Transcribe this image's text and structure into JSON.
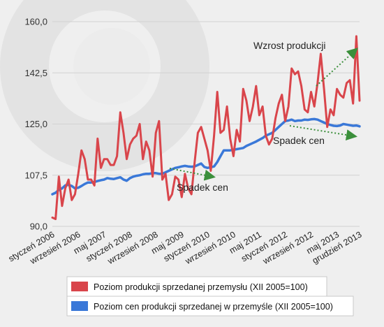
{
  "chart_data": {
    "type": "line",
    "ylim": [
      90,
      160
    ],
    "y_ticks": [
      "90,0",
      "107,5",
      "125,0",
      "142,5",
      "160,0"
    ],
    "y_tick_values": [
      90,
      107.5,
      125,
      142.5,
      160
    ],
    "x_tick_labels": [
      "styczeń 2006",
      "wrzesień 2006",
      "maj 2007",
      "styczeń 2008",
      "wrzesień 2008",
      "maj 2009",
      "styczeń 2010",
      "wrzesień 2010",
      "maj 2011",
      "styczeń 2012",
      "wrzesień 2012",
      "maj 2013",
      "grudzień 2013"
    ],
    "x_tick_index": [
      0,
      8,
      16,
      24,
      32,
      40,
      48,
      56,
      64,
      72,
      80,
      88,
      95
    ],
    "grid": true,
    "legend_placement": "bottom",
    "annotations": [
      {
        "text": "Wzrost produkcji",
        "trend": "up"
      },
      {
        "text": "Spadek cen",
        "trend": "down"
      },
      {
        "text": "Spadek cen",
        "trend": "down"
      }
    ],
    "series": [
      {
        "name": "Poziom produkcji sprzedanej przemysłu (XII 2005=100)",
        "color": "#d9454b",
        "values": [
          93,
          92.5,
          107,
          97,
          103,
          106,
          99,
          101,
          108,
          116,
          113,
          106,
          106,
          104,
          120,
          110,
          113,
          113,
          111,
          111,
          114,
          129,
          122,
          113,
          118,
          120,
          121,
          125,
          113,
          119,
          116,
          107,
          122,
          126,
          106,
          108,
          99,
          101,
          107,
          106,
          100,
          108,
          103,
          101,
          112,
          122,
          124,
          120,
          116,
          109,
          121,
          136,
          122,
          123,
          131,
          120,
          114,
          123,
          119,
          137,
          133,
          126,
          131,
          138,
          128,
          131,
          121,
          118,
          120,
          127,
          132,
          135,
          126,
          131,
          144,
          142,
          143,
          138,
          130,
          129,
          136,
          131,
          139,
          149,
          137,
          124,
          130,
          128,
          137,
          135,
          134,
          139,
          140,
          132,
          155,
          133
        ]
      },
      {
        "name": "Poziom cen produkcji sprzedanej w przemyśle (XII 2005=100)",
        "color": "#3a78d8",
        "values": [
          101,
          101.5,
          102.5,
          103,
          104,
          104.2,
          103.8,
          103,
          103.2,
          103.8,
          104.5,
          105,
          105,
          105.2,
          105.5,
          105.8,
          106,
          106.5,
          106.3,
          106.2,
          106.5,
          106.8,
          106,
          105.6,
          106.5,
          107,
          107.3,
          107.5,
          107.8,
          108,
          108,
          108.2,
          108.2,
          108,
          108,
          108.5,
          109,
          109.5,
          110,
          110.2,
          110.5,
          110.7,
          110.5,
          110.4,
          110.5,
          111,
          111.5,
          110.3,
          110,
          110.2,
          110.5,
          112,
          114,
          116,
          116,
          116,
          116.2,
          116.4,
          116.6,
          116.8,
          117.5,
          118,
          118.5,
          119,
          119.6,
          120.2,
          121,
          121.5,
          122,
          123,
          124,
          125,
          126,
          126.2,
          126.5,
          126,
          126.2,
          126.2,
          126.5,
          126.4,
          126.6,
          126.7,
          126.5,
          126,
          125.5,
          125,
          124.7,
          124.4,
          124.3,
          124.5,
          125,
          124.8,
          124.6,
          124.4,
          124.5,
          124.2
        ]
      }
    ]
  }
}
